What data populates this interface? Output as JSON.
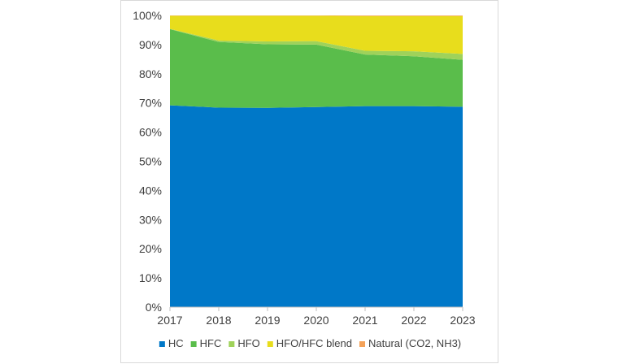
{
  "chart_data": {
    "type": "area",
    "stacked": "percent",
    "x": [
      "2017",
      "2018",
      "2019",
      "2020",
      "2021",
      "2022",
      "2023"
    ],
    "y_ticks": [
      "0%",
      "10%",
      "20%",
      "30%",
      "40%",
      "50%",
      "60%",
      "70%",
      "80%",
      "90%",
      "100%"
    ],
    "ylim": [
      0,
      100
    ],
    "grid": false,
    "legend_position": "bottom",
    "series": [
      {
        "name": "HC",
        "color": "#0078c8",
        "values": [
          69.2,
          68.4,
          68.3,
          68.6,
          68.9,
          68.9,
          68.7
        ]
      },
      {
        "name": "HFC",
        "color": "#5abd4b",
        "values": [
          26.1,
          22.5,
          21.8,
          21.4,
          17.7,
          17.1,
          16.1
        ]
      },
      {
        "name": "HFO",
        "color": "#9fd25a",
        "values": [
          0.1,
          0.5,
          1.0,
          1.2,
          1.3,
          1.7,
          2.0
        ]
      },
      {
        "name": "HFO/HFC blend",
        "color": "#e8dd1c",
        "values": [
          4.5,
          8.5,
          8.8,
          8.7,
          11.9,
          12.1,
          13.0
        ]
      },
      {
        "name": "Natural (CO2, NH3)",
        "color": "#f4a259",
        "values": [
          0.1,
          0.1,
          0.1,
          0.1,
          0.2,
          0.2,
          0.2
        ]
      }
    ]
  }
}
